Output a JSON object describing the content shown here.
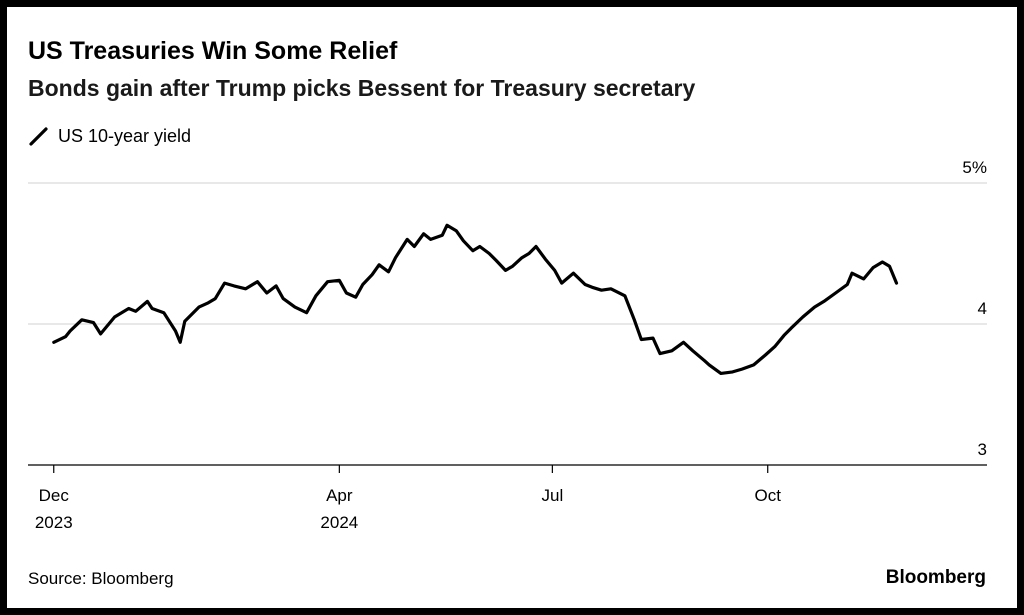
{
  "chart_data": {
    "type": "line",
    "title": "US Treasuries Win Some Relief",
    "subtitle": "Bonds gain after Trump picks Bessent for Treasury secretary",
    "xlabel": "",
    "ylabel": "",
    "x_tick_labels": [
      {
        "x": "2023-12-01",
        "lines": [
          "Dec",
          "2023"
        ]
      },
      {
        "x": "2024-04-01",
        "lines": [
          "Apr",
          "2024"
        ]
      },
      {
        "x": "2024-07-01",
        "lines": [
          "Jul"
        ]
      },
      {
        "x": "2024-10-01",
        "lines": [
          "Oct"
        ]
      }
    ],
    "y_ticks": [
      {
        "value": 3,
        "label": "3"
      },
      {
        "value": 4,
        "label": "4"
      },
      {
        "value": 5,
        "label": "5%"
      }
    ],
    "xlim": [
      "2023-11-20",
      "2024-12-20"
    ],
    "ylim": [
      3,
      5
    ],
    "grid": true,
    "legend_position": "top-left",
    "series": [
      {
        "name": "US 10-year yield",
        "color": "#000000",
        "points": [
          [
            "2023-12-01",
            3.87
          ],
          [
            "2023-12-06",
            3.91
          ],
          [
            "2023-12-08",
            3.95
          ],
          [
            "2023-12-13",
            4.03
          ],
          [
            "2023-12-18",
            4.01
          ],
          [
            "2023-12-21",
            3.93
          ],
          [
            "2023-12-27",
            4.05
          ],
          [
            "2024-01-02",
            4.11
          ],
          [
            "2024-01-05",
            4.09
          ],
          [
            "2024-01-10",
            4.16
          ],
          [
            "2024-01-12",
            4.11
          ],
          [
            "2024-01-17",
            4.08
          ],
          [
            "2024-01-22",
            3.95
          ],
          [
            "2024-01-24",
            3.87
          ],
          [
            "2024-01-26",
            4.02
          ],
          [
            "2024-02-01",
            4.12
          ],
          [
            "2024-02-05",
            4.15
          ],
          [
            "2024-02-08",
            4.18
          ],
          [
            "2024-02-12",
            4.29
          ],
          [
            "2024-02-16",
            4.27
          ],
          [
            "2024-02-21",
            4.25
          ],
          [
            "2024-02-26",
            4.3
          ],
          [
            "2024-03-01",
            4.22
          ],
          [
            "2024-03-05",
            4.27
          ],
          [
            "2024-03-08",
            4.18
          ],
          [
            "2024-03-13",
            4.12
          ],
          [
            "2024-03-18",
            4.08
          ],
          [
            "2024-03-22",
            4.2
          ],
          [
            "2024-03-27",
            4.3
          ],
          [
            "2024-04-01",
            4.31
          ],
          [
            "2024-04-04",
            4.22
          ],
          [
            "2024-04-08",
            4.19
          ],
          [
            "2024-04-11",
            4.28
          ],
          [
            "2024-04-15",
            4.35
          ],
          [
            "2024-04-18",
            4.42
          ],
          [
            "2024-04-22",
            4.37
          ],
          [
            "2024-04-25",
            4.47
          ],
          [
            "2024-04-30",
            4.6
          ],
          [
            "2024-05-03",
            4.55
          ],
          [
            "2024-05-07",
            4.64
          ],
          [
            "2024-05-10",
            4.6
          ],
          [
            "2024-05-15",
            4.63
          ],
          [
            "2024-05-17",
            4.7
          ],
          [
            "2024-05-21",
            4.66
          ],
          [
            "2024-05-24",
            4.59
          ],
          [
            "2024-05-28",
            4.52
          ],
          [
            "2024-05-31",
            4.55
          ],
          [
            "2024-06-04",
            4.5
          ],
          [
            "2024-06-07",
            4.45
          ],
          [
            "2024-06-11",
            4.38
          ],
          [
            "2024-06-14",
            4.41
          ],
          [
            "2024-06-18",
            4.47
          ],
          [
            "2024-06-21",
            4.5
          ],
          [
            "2024-06-24",
            4.55
          ],
          [
            "2024-06-28",
            4.46
          ],
          [
            "2024-07-02",
            4.38
          ],
          [
            "2024-07-05",
            4.29
          ],
          [
            "2024-07-10",
            4.36
          ],
          [
            "2024-07-15",
            4.28
          ],
          [
            "2024-07-18",
            4.26
          ],
          [
            "2024-07-22",
            4.24
          ],
          [
            "2024-07-26",
            4.25
          ],
          [
            "2024-08-01",
            4.2
          ],
          [
            "2024-08-05",
            4.03
          ],
          [
            "2024-08-08",
            3.89
          ],
          [
            "2024-08-13",
            3.9
          ],
          [
            "2024-08-16",
            3.79
          ],
          [
            "2024-08-21",
            3.81
          ],
          [
            "2024-08-26",
            3.87
          ],
          [
            "2024-08-30",
            3.81
          ],
          [
            "2024-09-04",
            3.74
          ],
          [
            "2024-09-06",
            3.71
          ],
          [
            "2024-09-11",
            3.65
          ],
          [
            "2024-09-16",
            3.66
          ],
          [
            "2024-09-20",
            3.68
          ],
          [
            "2024-09-25",
            3.71
          ],
          [
            "2024-09-30",
            3.78
          ],
          [
            "2024-10-04",
            3.84
          ],
          [
            "2024-10-08",
            3.92
          ],
          [
            "2024-10-11",
            3.97
          ],
          [
            "2024-10-16",
            4.05
          ],
          [
            "2024-10-21",
            4.12
          ],
          [
            "2024-10-25",
            4.16
          ],
          [
            "2024-10-30",
            4.22
          ],
          [
            "2024-11-04",
            4.28
          ],
          [
            "2024-11-06",
            4.36
          ],
          [
            "2024-11-11",
            4.32
          ],
          [
            "2024-11-15",
            4.4
          ],
          [
            "2024-11-19",
            4.44
          ],
          [
            "2024-11-22",
            4.41
          ],
          [
            "2024-11-25",
            4.29
          ]
        ]
      }
    ]
  },
  "footer": {
    "source": "Source: Bloomberg",
    "brand": "Bloomberg"
  }
}
